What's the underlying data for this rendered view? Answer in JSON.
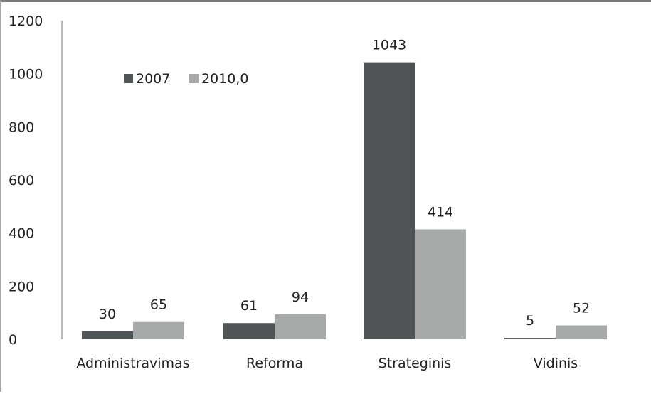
{
  "chart_data": {
    "type": "bar",
    "categories": [
      "Administravimas",
      "Reforma",
      "Strateginis",
      "Vidinis"
    ],
    "series": [
      {
        "name": "2007",
        "values": [
          30,
          61,
          1043,
          5
        ],
        "color": "#505454"
      },
      {
        "name": "2010,0",
        "values": [
          65,
          94,
          414,
          52
        ],
        "color": "#a8a9a9"
      }
    ],
    "ylim": [
      0,
      1200
    ],
    "yticks": [
      "0",
      "200",
      "400",
      "600",
      "800",
      "1000",
      "1200"
    ],
    "title": "",
    "xlabel": "",
    "ylabel": "",
    "legend_position": "top-left",
    "grid": false
  }
}
